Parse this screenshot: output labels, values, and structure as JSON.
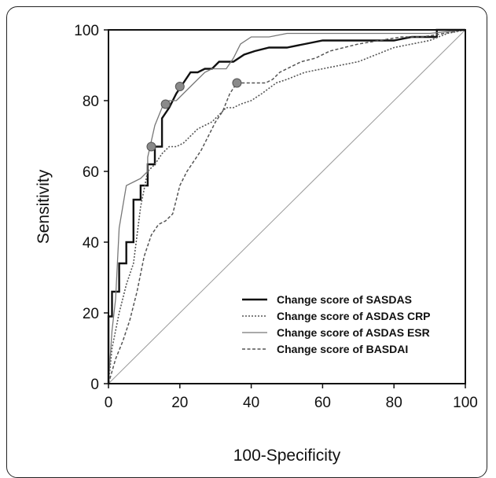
{
  "chart_data": {
    "type": "line",
    "title": "",
    "xlabel": "100-Specificity",
    "ylabel": "Sensitivity",
    "xlim": [
      0,
      100
    ],
    "ylim": [
      0,
      100
    ],
    "x_ticks": [
      "0",
      "20",
      "40",
      "60",
      "80",
      "100"
    ],
    "y_ticks": [
      "0",
      "20",
      "40",
      "60",
      "80",
      "100"
    ],
    "grid": false,
    "legend": "bottom-right",
    "reference_line": {
      "x": [
        0,
        100
      ],
      "y": [
        0,
        100
      ],
      "color": "#9a9a9a"
    },
    "series": [
      {
        "name": "Change score of SASDAS",
        "style": "solid-thick",
        "color": "#111111",
        "x": [
          0,
          0,
          1,
          1,
          3,
          3,
          5,
          5,
          7,
          7,
          9,
          9,
          11,
          11,
          13,
          13,
          15,
          15,
          17,
          19,
          21,
          23,
          25,
          27,
          29,
          31,
          33,
          35,
          38,
          41,
          45,
          50,
          55,
          60,
          65,
          70,
          75,
          80,
          85,
          90,
          92,
          92,
          96,
          100
        ],
        "y": [
          0,
          19,
          19,
          26,
          26,
          34,
          34,
          40,
          40,
          52,
          52,
          56,
          56,
          62,
          62,
          67,
          67,
          75,
          78,
          82,
          85,
          88,
          88,
          89,
          89,
          91,
          91,
          91,
          93,
          94,
          95,
          95,
          96,
          97,
          97,
          97,
          97,
          97,
          98,
          98,
          98,
          100,
          100,
          100
        ]
      },
      {
        "name": "Change score of ASDAS CRP",
        "style": "dotted",
        "color": "#555555",
        "x": [
          0,
          1,
          1,
          3,
          3,
          5,
          5,
          7,
          7,
          9,
          9,
          11,
          11,
          13,
          15,
          17,
          19,
          21,
          23,
          25,
          27,
          29,
          31,
          33,
          35,
          37,
          40,
          43,
          47,
          50,
          55,
          60,
          65,
          70,
          75,
          80,
          85,
          90,
          95,
          100
        ],
        "y": [
          0,
          10,
          10,
          20,
          20,
          28,
          28,
          34,
          34,
          50,
          50,
          60,
          60,
          62,
          65,
          67,
          67,
          68,
          70,
          72,
          73,
          74,
          76,
          78,
          78,
          79,
          80,
          82,
          85,
          86,
          88,
          89,
          90,
          91,
          93,
          95,
          96,
          97,
          99,
          100
        ]
      },
      {
        "name": "Change score of ASDAS ESR",
        "style": "solid-thin",
        "color": "#777777",
        "x": [
          0,
          1,
          1,
          2,
          2,
          3,
          3,
          5,
          5,
          7,
          9,
          11,
          11,
          13,
          15,
          17,
          19,
          21,
          23,
          25,
          27,
          29,
          31,
          33,
          35,
          37,
          40,
          45,
          50,
          55,
          60,
          70,
          80,
          90,
          100
        ],
        "y": [
          0,
          15,
          15,
          24,
          24,
          44,
          44,
          56,
          56,
          57,
          58,
          60,
          64,
          73,
          78,
          80,
          80,
          82,
          84,
          86,
          88,
          89,
          89,
          89,
          92,
          96,
          98,
          98,
          99,
          99,
          99,
          99,
          99,
          99,
          100
        ]
      },
      {
        "name": "Change score of BASDAI",
        "style": "dashed",
        "color": "#555555",
        "x": [
          0,
          2,
          4,
          6,
          8,
          10,
          12,
          14,
          16,
          18,
          19,
          20,
          21,
          22,
          24,
          26,
          28,
          30,
          32,
          34,
          36,
          38,
          40,
          42,
          44,
          46,
          48,
          50,
          54,
          58,
          62,
          66,
          70,
          76,
          82,
          88,
          94,
          100
        ],
        "y": [
          0,
          7,
          12,
          18,
          26,
          36,
          42,
          45,
          46,
          48,
          52,
          56,
          58,
          60,
          63,
          66,
          70,
          74,
          77,
          82,
          85,
          85,
          85,
          85,
          85,
          86,
          88,
          89,
          91,
          92,
          94,
          95,
          96,
          97,
          98,
          98,
          99,
          100
        ]
      }
    ],
    "markers": [
      {
        "x": 12,
        "y": 67
      },
      {
        "x": 16,
        "y": 79
      },
      {
        "x": 20,
        "y": 84
      },
      {
        "x": 36,
        "y": 85
      }
    ]
  }
}
